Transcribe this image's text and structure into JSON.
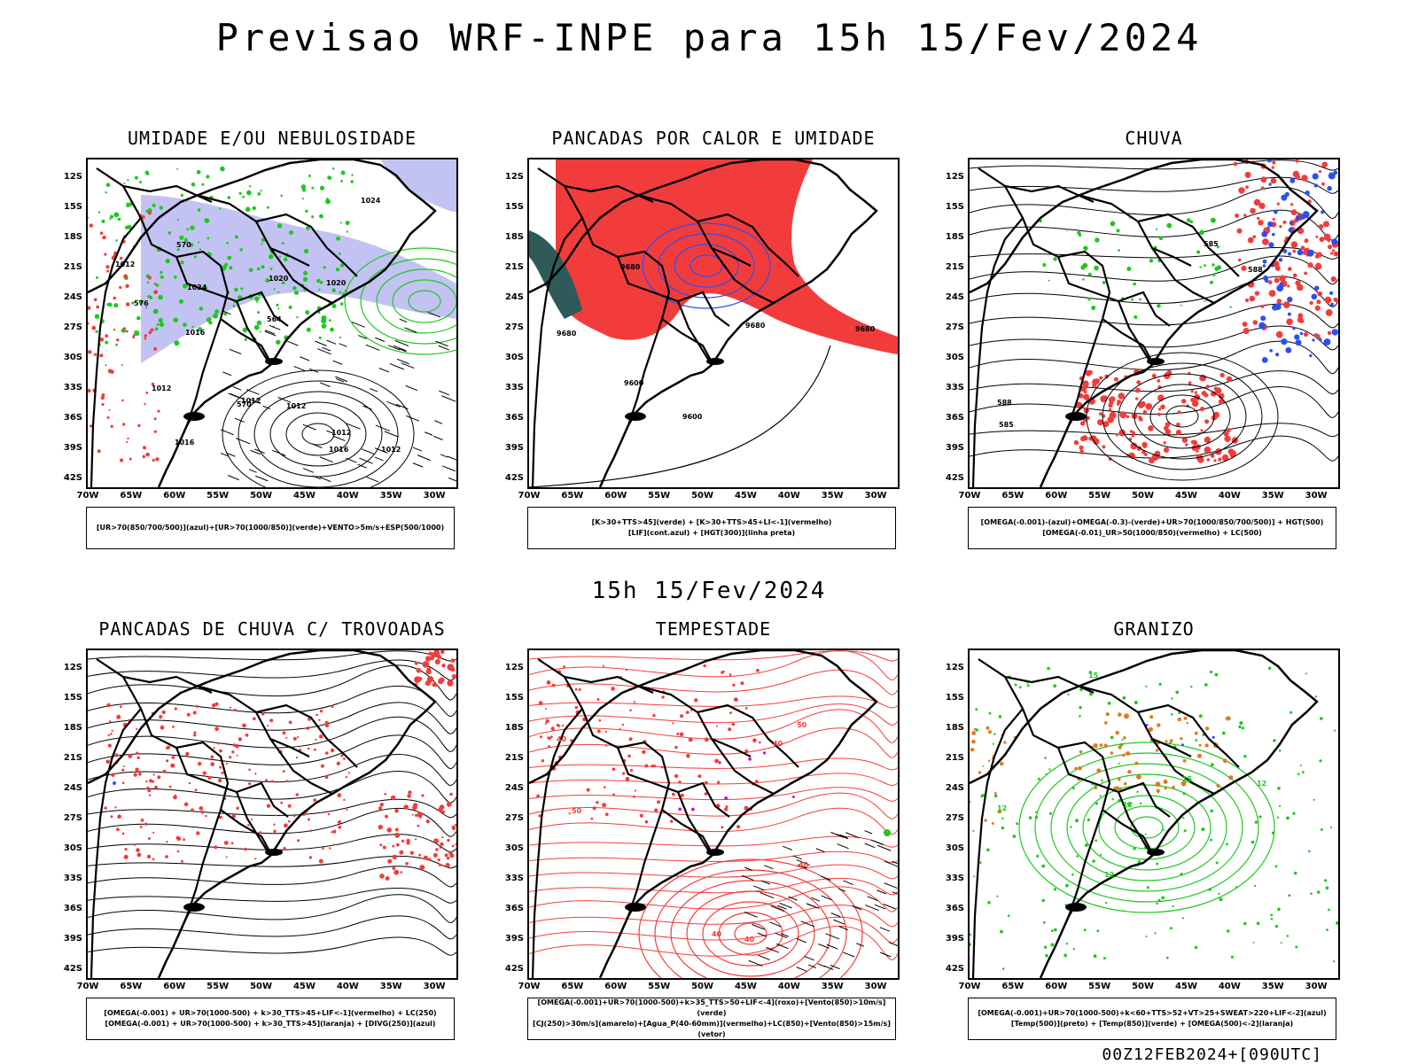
{
  "title": "Previsao WRF-INPE  para 15h 15/Fev/2024",
  "subtitle": "15h 15/Fev/2024",
  "footer": "00Z12FEB2024+[090UTC]",
  "axes": {
    "y_labels": [
      "12S",
      "15S",
      "18S",
      "21S",
      "24S",
      "27S",
      "30S",
      "33S",
      "36S",
      "39S",
      "42S"
    ],
    "x_labels": [
      "70W",
      "65W",
      "60W",
      "55W",
      "50W",
      "45W",
      "40W",
      "35W",
      "30W"
    ]
  },
  "colors": {
    "red": "#f23c3c",
    "green": "#1ec81e",
    "blue": "#2a50f0",
    "lavender": "#b4b4f0",
    "orange": "#e27a1e",
    "teal": "#2e5a5a",
    "magenta": "#c814c8"
  },
  "panels": [
    {
      "id": "umidade",
      "title": "UMIDADE E/OU NEBULOSIDADE",
      "legend": [
        "[UR>70(850/700/500)](azul)+[UR>70(1000/850)](verde)+VENTO>5m/s+ESP(500/1000)"
      ],
      "labels": [
        "1012",
        "1012",
        "1012",
        "1012",
        "1012",
        "1012",
        "1016",
        "1016",
        "1016",
        "1020",
        "1020",
        "1024",
        "1024",
        "570",
        "570",
        "576",
        "564"
      ]
    },
    {
      "id": "pancadas_calor",
      "title": "PANCADAS POR CALOR E UMIDADE",
      "legend": [
        "[K>30+TTS>45](verde) + [K>30+TTS>45+LI<-1](vermelho)",
        "[LIF](cont.azul) + [HGT(300)](linha preta)"
      ],
      "labels": [
        "9680",
        "9680",
        "9680",
        "9680",
        "9600",
        "9600"
      ]
    },
    {
      "id": "chuva",
      "title": "CHUVA",
      "legend": [
        "[OMEGA(-0.001)-(azul)+OMEGA(-0.3)-(verde)+UR>70(1000/850/700/500)] + HGT(500)",
        "[OMEGA(-0.01)_UR>50(1000/850)(vermelho) + LC(500)"
      ],
      "labels": [
        "588",
        "588",
        "585",
        "585"
      ]
    },
    {
      "id": "trovoadas",
      "title": "PANCADAS DE CHUVA C/ TROVOADAS",
      "legend": [
        "[OMEGA(-0.001) + UR>70(1000-500) + k>30_TTS>45+LIF<-1](vermelho) + LC(250)",
        "[OMEGA(-0.001) + UR>70(1000-500) + k>30_TTS>45](laranja) + [DIVG(250)](azul)"
      ],
      "labels": []
    },
    {
      "id": "tempestade",
      "title": "TEMPESTADE",
      "legend": [
        "[OMEGA(-0.001)+UR>70(1000-500)+k>35_TTS>50+LIF<-4](roxo)+[Vento(850)>10m/s](verde)",
        "[CJ(250)>30m/s](amarelo)+[Agua_P(40-60mm)](vermelho)+LC(850)+[Vento(850)>15m/s](vetor)"
      ],
      "labels": [
        "40",
        "40",
        "40",
        "40",
        "50",
        "50",
        "40"
      ]
    },
    {
      "id": "granizo",
      "title": "GRANIZO",
      "legend": [
        "[OMEGA(-0.001)+UR>70(1000-500)+k<60+TTS>52+VT>25+SWEAT>220+LIF<-2](azul)",
        "[Temp(500)](preto) + [Temp(850)](verde) + [OMEGA(500)<-2](laranja)"
      ],
      "labels": [
        "12",
        "12",
        "12",
        "12",
        "15",
        "15"
      ]
    }
  ]
}
